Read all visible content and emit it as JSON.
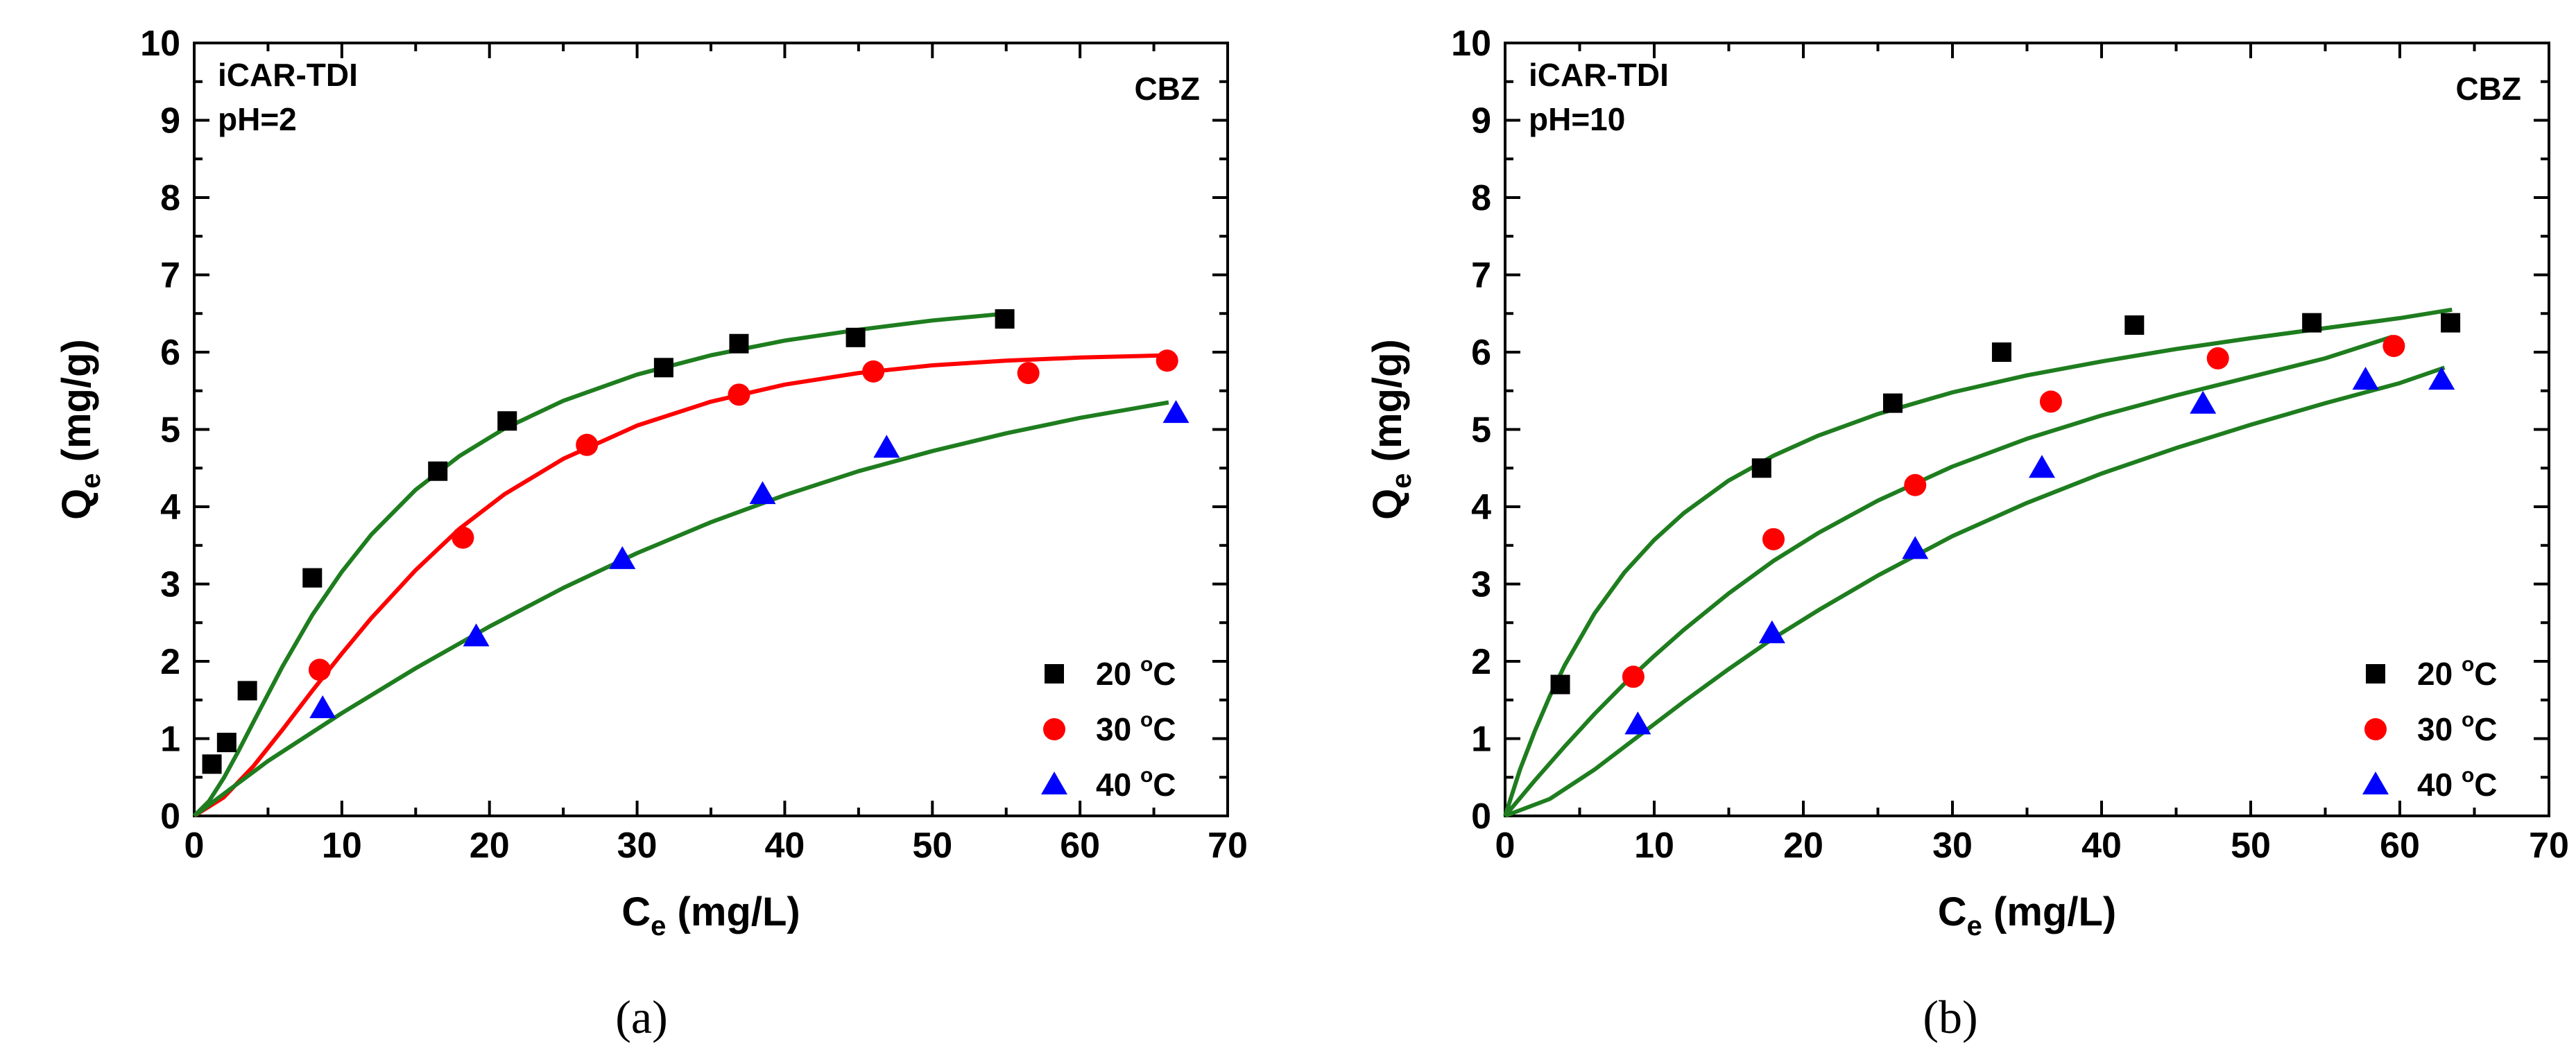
{
  "chart_data": [
    {
      "type": "scatter",
      "panel_label": "(a)",
      "annotation_lines": [
        "iCAR-TDI",
        "pH=2"
      ],
      "corner_label": "CBZ",
      "xlabel": {
        "main": "C",
        "sub": "e",
        "rest": " (mg/L)"
      },
      "ylabel": {
        "main": "Q",
        "sub": "e",
        "rest": " (mg/g)"
      },
      "xlim": [
        0,
        70
      ],
      "ylim": [
        0,
        10
      ],
      "xticks": [
        0,
        10,
        20,
        30,
        40,
        50,
        60,
        70
      ],
      "yticks": [
        0,
        1,
        2,
        3,
        4,
        5,
        6,
        7,
        8,
        9,
        10
      ],
      "legend_position": "bottom-right",
      "series": [
        {
          "name": "20 °C",
          "label_value": "20",
          "label_deg": "o",
          "label_unit": "C",
          "marker": "square",
          "color": "#000000",
          "x": [
            1.2,
            2.2,
            3.6,
            8.0,
            16.5,
            21.2,
            31.8,
            36.9,
            44.8,
            54.9
          ],
          "y": [
            0.67,
            0.95,
            1.62,
            3.08,
            4.46,
            5.11,
            5.8,
            6.11,
            6.19,
            6.43
          ]
        },
        {
          "name": "30 °C",
          "label_value": "30",
          "label_deg": "o",
          "label_unit": "C",
          "marker": "circle",
          "color": "#ff0000",
          "x": [
            8.5,
            18.2,
            26.6,
            36.9,
            46.0,
            56.5,
            65.9
          ],
          "y": [
            1.89,
            3.6,
            4.8,
            5.45,
            5.75,
            5.73,
            5.89
          ]
        },
        {
          "name": "40 °C",
          "label_value": "40",
          "label_deg": "o",
          "label_unit": "C",
          "marker": "triangle",
          "color": "#0000ff",
          "x": [
            8.7,
            19.1,
            29.0,
            38.5,
            46.9,
            66.5
          ],
          "y": [
            1.39,
            2.32,
            3.32,
            4.16,
            4.76,
            5.21
          ]
        }
      ],
      "fits": [
        {
          "color": "#1e7d1e",
          "x": [
            0,
            1,
            2,
            3,
            4,
            6,
            8,
            10,
            12,
            15,
            18,
            21,
            25,
            30,
            35,
            40,
            45,
            50,
            55
          ],
          "y": [
            0.0,
            0.19,
            0.49,
            0.84,
            1.21,
            1.94,
            2.6,
            3.16,
            3.64,
            4.22,
            4.66,
            5.01,
            5.37,
            5.71,
            5.96,
            6.15,
            6.29,
            6.41,
            6.5
          ]
        },
        {
          "color": "#ff0000",
          "x": [
            0,
            2,
            4,
            6,
            8,
            10,
            12,
            15,
            18,
            21,
            25,
            30,
            35,
            40,
            45,
            50,
            55,
            60,
            66
          ],
          "y": [
            0.0,
            0.24,
            0.64,
            1.12,
            1.62,
            2.1,
            2.56,
            3.18,
            3.72,
            4.16,
            4.62,
            5.05,
            5.36,
            5.58,
            5.73,
            5.83,
            5.89,
            5.93,
            5.96
          ]
        },
        {
          "color": "#1e7d1e",
          "x": [
            0,
            5,
            10,
            15,
            20,
            25,
            30,
            35,
            40,
            45,
            50,
            55,
            60,
            66
          ],
          "y": [
            0.0,
            0.71,
            1.33,
            1.91,
            2.45,
            2.95,
            3.4,
            3.8,
            4.15,
            4.46,
            4.72,
            4.95,
            5.15,
            5.35
          ]
        }
      ]
    },
    {
      "type": "scatter",
      "panel_label": "(b)",
      "annotation_lines": [
        "iCAR-TDI",
        "pH=10"
      ],
      "corner_label": "CBZ",
      "xlabel": {
        "main": "C",
        "sub": "e",
        "rest": " (mg/L)"
      },
      "ylabel": {
        "main": "Q",
        "sub": "e",
        "rest": " (mg/g)"
      },
      "xlim": [
        0,
        70
      ],
      "ylim": [
        0,
        10
      ],
      "xticks": [
        0,
        10,
        20,
        30,
        40,
        50,
        60,
        70
      ],
      "yticks": [
        0,
        1,
        2,
        3,
        4,
        5,
        6,
        7,
        8,
        9,
        10
      ],
      "legend_position": "bottom-right",
      "series": [
        {
          "name": "20 °C",
          "label_value": "20",
          "label_deg": "o",
          "label_unit": "C",
          "marker": "square",
          "color": "#000000",
          "x": [
            3.7,
            17.2,
            26.0,
            33.3,
            42.2,
            54.1,
            63.4
          ],
          "y": [
            1.7,
            4.5,
            5.34,
            6.0,
            6.35,
            6.38,
            6.38
          ]
        },
        {
          "name": "30 °C",
          "label_value": "30",
          "label_deg": "o",
          "label_unit": "C",
          "marker": "circle",
          "color": "#ff0000",
          "x": [
            8.6,
            18.0,
            27.5,
            36.6,
            47.8,
            59.6
          ],
          "y": [
            1.8,
            3.58,
            4.28,
            5.36,
            5.92,
            6.08
          ]
        },
        {
          "name": "40 °C",
          "label_value": "40",
          "label_deg": "o",
          "label_unit": "C",
          "marker": "triangle",
          "color": "#0000ff",
          "x": [
            8.9,
            17.9,
            27.5,
            36.0,
            46.8,
            57.7,
            62.8
          ],
          "y": [
            1.18,
            2.36,
            3.45,
            4.5,
            5.33,
            5.64,
            5.64
          ]
        }
      ],
      "fits": [
        {
          "color": "#1e7d1e",
          "x": [
            0,
            1,
            2,
            3,
            4,
            6,
            8,
            10,
            12,
            15,
            18,
            21,
            25,
            30,
            35,
            40,
            45,
            50,
            55,
            60,
            63.5
          ],
          "y": [
            0.0,
            0.6,
            1.1,
            1.55,
            1.95,
            2.62,
            3.15,
            3.57,
            3.92,
            4.34,
            4.66,
            4.92,
            5.2,
            5.48,
            5.7,
            5.88,
            6.04,
            6.18,
            6.31,
            6.44,
            6.55
          ]
        },
        {
          "color": "#1e7d1e",
          "x": [
            0,
            2,
            4,
            6,
            8,
            10,
            12,
            15,
            18,
            21,
            25,
            30,
            35,
            40,
            45,
            50,
            55,
            59.5
          ],
          "y": [
            0.0,
            0.46,
            0.9,
            1.32,
            1.71,
            2.07,
            2.41,
            2.88,
            3.3,
            3.66,
            4.08,
            4.52,
            4.88,
            5.18,
            5.44,
            5.68,
            5.92,
            6.2
          ]
        },
        {
          "color": "#1e7d1e",
          "x": [
            0,
            3,
            6,
            9,
            12,
            15,
            18,
            21,
            25,
            30,
            35,
            40,
            45,
            50,
            55,
            60,
            63
          ],
          "y": [
            0.0,
            0.22,
            0.6,
            1.04,
            1.48,
            1.9,
            2.3,
            2.66,
            3.11,
            3.62,
            4.05,
            4.43,
            4.76,
            5.06,
            5.34,
            5.6,
            5.8
          ]
        }
      ]
    }
  ]
}
